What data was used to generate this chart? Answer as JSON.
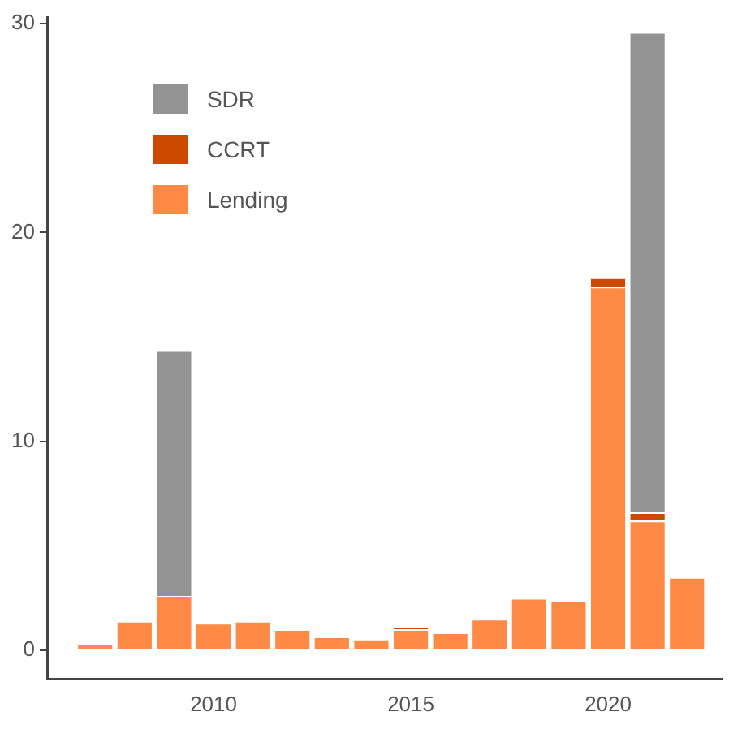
{
  "chart_data": {
    "type": "bar",
    "stacked": true,
    "x": [
      2007,
      2008,
      2009,
      2010,
      2011,
      2012,
      2013,
      2014,
      2015,
      2016,
      2017,
      2018,
      2019,
      2020,
      2021,
      2022
    ],
    "series": [
      {
        "name": "Lending",
        "color": "#ff8a45",
        "values": [
          0.3,
          1.4,
          2.6,
          1.3,
          1.4,
          1.0,
          0.65,
          0.55,
          1.0,
          0.85,
          1.5,
          2.5,
          2.4,
          17.4,
          6.2,
          3.5
        ]
      },
      {
        "name": "CCRT",
        "color": "#cc4a00",
        "values": [
          null,
          null,
          null,
          null,
          null,
          null,
          null,
          null,
          0.1,
          null,
          null,
          null,
          null,
          0.45,
          0.4,
          null
        ]
      },
      {
        "name": "SDR",
        "color": "#939393",
        "values": [
          null,
          null,
          11.8,
          null,
          null,
          null,
          null,
          null,
          null,
          null,
          null,
          null,
          null,
          null,
          23.0,
          null
        ]
      }
    ],
    "xlim": [
      2005.8,
      2022.9
    ],
    "xticks": [
      2010,
      2015,
      2020
    ],
    "ylim": [
      -1.4,
      30.3
    ],
    "yticks": [
      0,
      10,
      20,
      30
    ],
    "grid": false,
    "legend": "top left"
  }
}
